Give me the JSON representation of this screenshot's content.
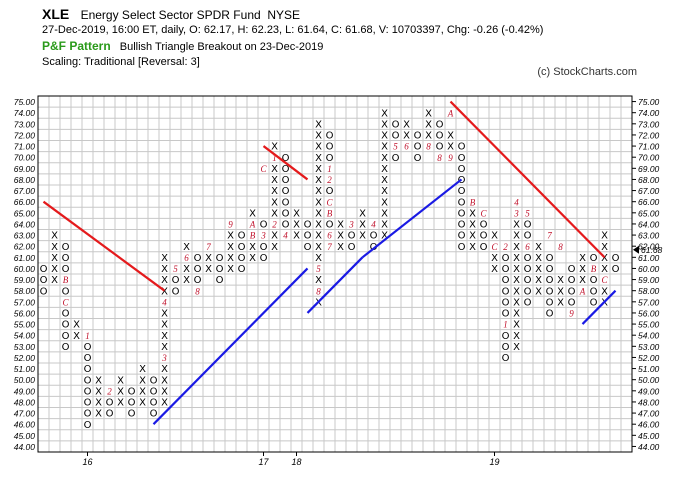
{
  "header": {
    "symbol": "XLE",
    "name": "Energy Select Sector SPDR Fund",
    "exchange": "NYSE",
    "quote": "27-Dec-2019, 16:00 ET, daily, O: 62.17, H: 62.23, L: 61.64, C: 61.68, V: 10703397, Chg: -0.26 (-0.42%)",
    "pattern_label": "P&F Pattern",
    "pattern_text": "Bullish Triangle Breakout on 23-Dec-2019",
    "scaling": "Scaling: Traditional [Reversal: 3]",
    "copyright": "(c) StockCharts.com"
  },
  "chart_data": {
    "type": "point-and-figure",
    "box_size": 1,
    "reversal": 3,
    "ylim": [
      44,
      75
    ],
    "y_ticks": [
      "75.00",
      "74.00",
      "73.00",
      "72.00",
      "71.00",
      "70.00",
      "69.00",
      "68.00",
      "67.00",
      "66.00",
      "65.00",
      "64.00",
      "63.00",
      "62.00",
      "61.00",
      "60.00",
      "59.00",
      "58.00",
      "57.00",
      "56.00",
      "55.00",
      "54.00",
      "53.00",
      "52.00",
      "51.00",
      "50.00",
      "49.00",
      "48.00",
      "47.00",
      "46.00",
      "45.00",
      "44.00"
    ],
    "x_labels": [
      {
        "text": "16",
        "column": 4
      },
      {
        "text": "17",
        "column": 20
      },
      {
        "text": "18",
        "column": 23
      },
      {
        "text": "19",
        "column": 41
      }
    ],
    "last_price": 61.68,
    "last_price_label": "61.68",
    "columns": [
      {
        "type": "O",
        "high": 60,
        "low": 58
      },
      {
        "type": "X",
        "high": 63,
        "low": 59
      },
      {
        "type": "O",
        "high": 62,
        "low": 53
      },
      {
        "type": "X",
        "high": 55,
        "low": 54
      },
      {
        "type": "O",
        "high": 54,
        "low": 46
      },
      {
        "type": "X",
        "high": 50,
        "low": 47
      },
      {
        "type": "O",
        "high": 49,
        "low": 47
      },
      {
        "type": "X",
        "high": 50,
        "low": 48
      },
      {
        "type": "O",
        "high": 49,
        "low": 47
      },
      {
        "type": "X",
        "high": 51,
        "low": 48
      },
      {
        "type": "O",
        "high": 50,
        "low": 47
      },
      {
        "type": "X",
        "high": 61,
        "low": 48
      },
      {
        "type": "O",
        "high": 60,
        "low": 58
      },
      {
        "type": "X",
        "high": 62,
        "low": 59
      },
      {
        "type": "O",
        "high": 61,
        "low": 59
      },
      {
        "type": "X",
        "high": 62,
        "low": 60
      },
      {
        "type": "O",
        "high": 61,
        "low": 59
      },
      {
        "type": "X",
        "high": 64,
        "low": 60
      },
      {
        "type": "O",
        "high": 63,
        "low": 60
      },
      {
        "type": "X",
        "high": 65,
        "low": 61
      },
      {
        "type": "O",
        "high": 64,
        "low": 61
      },
      {
        "type": "X",
        "high": 71,
        "low": 62
      },
      {
        "type": "O",
        "high": 70,
        "low": 63
      },
      {
        "type": "X",
        "high": 65,
        "low": 63
      },
      {
        "type": "O",
        "high": 64,
        "low": 62
      },
      {
        "type": "X",
        "high": 73,
        "low": 57
      },
      {
        "type": "O",
        "high": 72,
        "low": 62
      },
      {
        "type": "X",
        "high": 64,
        "low": 62
      },
      {
        "type": "O",
        "high": 63,
        "low": 62
      },
      {
        "type": "X",
        "high": 65,
        "low": 63
      },
      {
        "type": "O",
        "high": 64,
        "low": 62
      },
      {
        "type": "X",
        "high": 74,
        "low": 63
      },
      {
        "type": "O",
        "high": 73,
        "low": 70
      },
      {
        "type": "X",
        "high": 73,
        "low": 71
      },
      {
        "type": "O",
        "high": 72,
        "low": 70
      },
      {
        "type": "X",
        "high": 74,
        "low": 71
      },
      {
        "type": "O",
        "high": 73,
        "low": 70
      },
      {
        "type": "X",
        "high": 72,
        "low": 70
      },
      {
        "type": "O",
        "high": 71,
        "low": 62
      },
      {
        "type": "X",
        "high": 65,
        "low": 62
      },
      {
        "type": "O",
        "high": 64,
        "low": 62
      },
      {
        "type": "X",
        "high": 63,
        "low": 60
      },
      {
        "type": "O",
        "high": 62,
        "low": 52
      },
      {
        "type": "X",
        "high": 66,
        "low": 53
      },
      {
        "type": "O",
        "high": 65,
        "low": 57
      },
      {
        "type": "X",
        "high": 62,
        "low": 58
      },
      {
        "type": "O",
        "high": 61,
        "low": 56
      },
      {
        "type": "X",
        "high": 59,
        "low": 57
      },
      {
        "type": "O",
        "high": 60,
        "low": 56
      },
      {
        "type": "X",
        "high": 61,
        "low": 58
      },
      {
        "type": "O",
        "high": 61,
        "low": 57
      },
      {
        "type": "X",
        "high": 63,
        "low": 57
      },
      {
        "type": "O",
        "high": 61,
        "low": 60
      }
    ],
    "month_markers": [
      {
        "column": 2,
        "price": 59,
        "text": "B"
      },
      {
        "column": 2,
        "price": 57,
        "text": "C"
      },
      {
        "column": 4,
        "price": 54,
        "text": "1"
      },
      {
        "column": 6,
        "price": 49,
        "text": "2"
      },
      {
        "column": 11,
        "price": 57,
        "text": "4"
      },
      {
        "column": 11,
        "price": 52,
        "text": "3"
      },
      {
        "column": 12,
        "price": 60,
        "text": "5"
      },
      {
        "column": 13,
        "price": 61,
        "text": "6"
      },
      {
        "column": 14,
        "price": 58,
        "text": "8"
      },
      {
        "column": 15,
        "price": 62,
        "text": "7"
      },
      {
        "column": 17,
        "price": 64,
        "text": "9"
      },
      {
        "column": 19,
        "price": 64,
        "text": "A"
      },
      {
        "column": 19,
        "price": 63,
        "text": "B"
      },
      {
        "column": 20,
        "price": 63,
        "text": "3"
      },
      {
        "column": 20,
        "price": 69,
        "text": "C"
      },
      {
        "column": 21,
        "price": 70,
        "text": "1"
      },
      {
        "column": 21,
        "price": 64,
        "text": "2"
      },
      {
        "column": 22,
        "price": 63,
        "text": "4"
      },
      {
        "column": 25,
        "price": 60,
        "text": "5"
      },
      {
        "column": 25,
        "price": 58,
        "text": "8"
      },
      {
        "column": 26,
        "price": 69,
        "text": "1"
      },
      {
        "column": 26,
        "price": 68,
        "text": "2"
      },
      {
        "column": 26,
        "price": 66,
        "text": "C"
      },
      {
        "column": 26,
        "price": 65,
        "text": "B"
      },
      {
        "column": 26,
        "price": 63,
        "text": "6"
      },
      {
        "column": 26,
        "price": 62,
        "text": "7"
      },
      {
        "column": 28,
        "price": 64,
        "text": "3"
      },
      {
        "column": 30,
        "price": 64,
        "text": "4"
      },
      {
        "column": 32,
        "price": 71,
        "text": "5"
      },
      {
        "column": 33,
        "price": 71,
        "text": "6"
      },
      {
        "column": 35,
        "price": 71,
        "text": "8"
      },
      {
        "column": 36,
        "price": 70,
        "text": "8"
      },
      {
        "column": 37,
        "price": 70,
        "text": "9"
      },
      {
        "column": 37,
        "price": 74,
        "text": "A"
      },
      {
        "column": 39,
        "price": 66,
        "text": "B"
      },
      {
        "column": 40,
        "price": 65,
        "text": "C"
      },
      {
        "column": 41,
        "price": 62,
        "text": "C"
      },
      {
        "column": 42,
        "price": 62,
        "text": "2"
      },
      {
        "column": 42,
        "price": 55,
        "text": "1"
      },
      {
        "column": 43,
        "price": 66,
        "text": "4"
      },
      {
        "column": 43,
        "price": 65,
        "text": "3"
      },
      {
        "column": 44,
        "price": 65,
        "text": "5"
      },
      {
        "column": 44,
        "price": 62,
        "text": "6"
      },
      {
        "column": 46,
        "price": 63,
        "text": "7"
      },
      {
        "column": 47,
        "price": 62,
        "text": "8"
      },
      {
        "column": 48,
        "price": 56,
        "text": "9"
      },
      {
        "column": 49,
        "price": 58,
        "text": "A"
      },
      {
        "column": 50,
        "price": 60,
        "text": "B"
      },
      {
        "column": 51,
        "price": 59,
        "text": "C"
      }
    ],
    "trendlines": [
      {
        "color": "#e41a1c",
        "from": {
          "column": 0,
          "price": 66
        },
        "to": {
          "column": 11,
          "price": 58
        }
      },
      {
        "color": "#e41a1c",
        "from": {
          "column": 20,
          "price": 71
        },
        "to": {
          "column": 24,
          "price": 68
        }
      },
      {
        "color": "#e41a1c",
        "from": {
          "column": 37,
          "price": 75
        },
        "to": {
          "column": 51,
          "price": 61
        }
      },
      {
        "color": "#1a1ae4",
        "from": {
          "column": 10,
          "price": 46
        },
        "to": {
          "column": 24,
          "price": 60
        }
      },
      {
        "color": "#1a1ae4",
        "from": {
          "column": 24,
          "price": 56
        },
        "to": {
          "column": 29,
          "price": 61
        }
      },
      {
        "color": "#1a1ae4",
        "from": {
          "column": 29,
          "price": 61
        },
        "to": {
          "column": 38,
          "price": 68
        }
      },
      {
        "color": "#1a1ae4",
        "from": {
          "column": 49,
          "price": 55
        },
        "to": {
          "column": 52,
          "price": 58
        }
      }
    ]
  }
}
